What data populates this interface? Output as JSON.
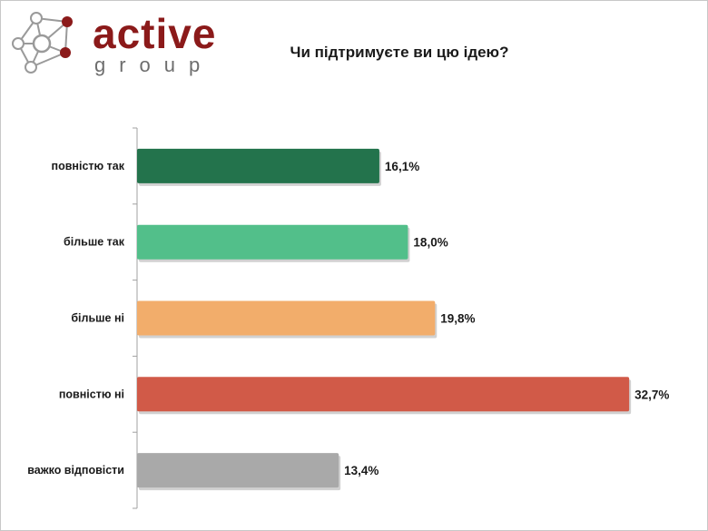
{
  "logo": {
    "word": "active",
    "sub": "group"
  },
  "chart_data": {
    "type": "bar",
    "orientation": "horizontal",
    "title": "Чи підтримуєте ви цю ідею?",
    "categories": [
      "повністю так",
      "більше так",
      "більше ні",
      "повністю ні",
      "важко відповісти"
    ],
    "values": [
      16.1,
      18.0,
      19.8,
      32.7,
      13.4
    ],
    "value_labels": [
      "16,1%",
      "18,0%",
      "19,8%",
      "32,7%",
      "13,4%"
    ],
    "colors": [
      "#23734c",
      "#52bf8a",
      "#f2ad6b",
      "#d15a48",
      "#a9a9a9"
    ],
    "xlim": [
      0,
      34.5
    ],
    "xlabel": "",
    "ylabel": "",
    "grid": false,
    "legend": "none"
  }
}
